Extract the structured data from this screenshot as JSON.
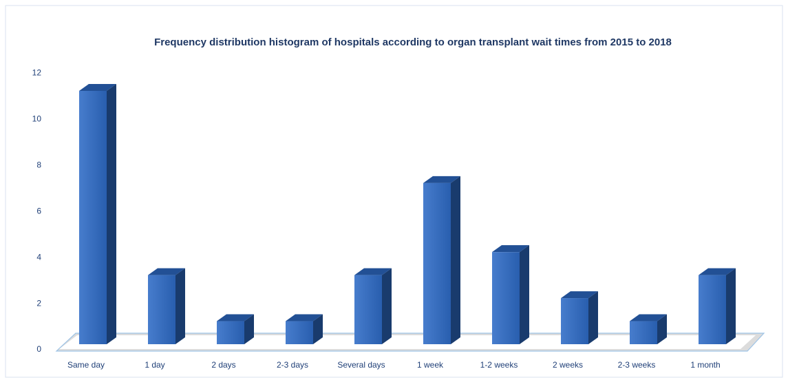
{
  "chart_data": {
    "type": "bar",
    "title": "Frequency distribution  histogram of hospitals according to organ transplant wait times from 2015 to 2018",
    "categories": [
      "Same day",
      "1 day",
      "2 days",
      "2-3 days",
      "Several days",
      "1 week",
      "1-2 weeks",
      "2 weeks",
      "2-3 weeks",
      "1 month"
    ],
    "values": [
      11,
      3,
      1,
      1,
      3,
      7,
      4,
      2,
      1,
      3
    ],
    "color": "#2e6bc6",
    "ylim": [
      0,
      12
    ],
    "yticks": [
      0,
      2,
      4,
      6,
      8,
      10,
      12
    ],
    "grid": false
  }
}
